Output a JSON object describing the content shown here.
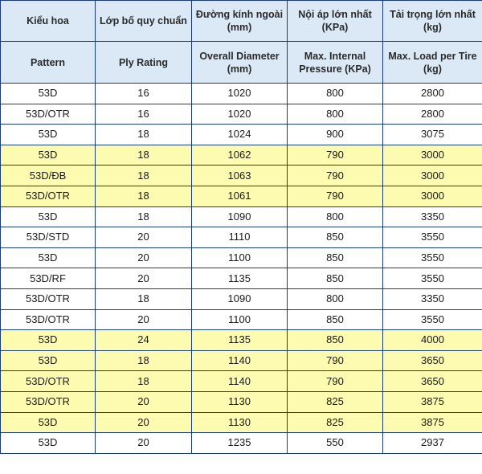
{
  "header_vn": [
    "Kiểu hoa",
    "Lớp bố quy chuẩn",
    "Đường kính ngoài (mm)",
    "Nội áp lớn nhất (KPa)",
    "Tải trọng lớn nhất (kg)"
  ],
  "header_en": [
    "Pattern",
    "Ply Rating",
    "Overall Diameter (mm)",
    "Max. Internal Pressure (KPa)",
    "Max. Load per Tire (kg)"
  ],
  "colors": {
    "header_bg": "#dbe9f7",
    "border": "#1a3b8c",
    "row_white": "#ffffff",
    "row_yellow": "#fdfbb0"
  },
  "rows": [
    {
      "cells": [
        "53D",
        "16",
        "1020",
        "800",
        "2800"
      ],
      "highlight": false
    },
    {
      "cells": [
        "53D/OTR",
        "16",
        "1020",
        "800",
        "2800"
      ],
      "highlight": false
    },
    {
      "cells": [
        "53D",
        "18",
        "1024",
        "900",
        "3075"
      ],
      "highlight": false
    },
    {
      "cells": [
        "53D",
        "18",
        "1062",
        "790",
        "3000"
      ],
      "highlight": true
    },
    {
      "cells": [
        "53D/ĐB",
        "18",
        "1063",
        "790",
        "3000"
      ],
      "highlight": true
    },
    {
      "cells": [
        "53D/OTR",
        "18",
        "1061",
        "790",
        "3000"
      ],
      "highlight": true
    },
    {
      "cells": [
        "53D",
        "18",
        "1090",
        "800",
        "3350"
      ],
      "highlight": false
    },
    {
      "cells": [
        "53D/STD",
        "20",
        "1110",
        "850",
        "3550"
      ],
      "highlight": false
    },
    {
      "cells": [
        "53D",
        "20",
        "1100",
        "850",
        "3550"
      ],
      "highlight": false
    },
    {
      "cells": [
        "53D/RF",
        "20",
        "1135",
        "850",
        "3550"
      ],
      "highlight": false
    },
    {
      "cells": [
        "53D/OTR",
        "18",
        "1090",
        "800",
        "3350"
      ],
      "highlight": false
    },
    {
      "cells": [
        "53D/OTR",
        "20",
        "1100",
        "850",
        "3550"
      ],
      "highlight": false
    },
    {
      "cells": [
        "53D",
        "24",
        "1135",
        "850",
        "4000"
      ],
      "highlight": true
    },
    {
      "cells": [
        "53D",
        "18",
        "1140",
        "790",
        "3650"
      ],
      "highlight": true
    },
    {
      "cells": [
        "53D/OTR",
        "18",
        "1140",
        "790",
        "3650"
      ],
      "highlight": true
    },
    {
      "cells": [
        "53D/OTR",
        "20",
        "1130",
        "825",
        "3875"
      ],
      "highlight": true
    },
    {
      "cells": [
        "53D",
        "20",
        "1130",
        "825",
        "3875"
      ],
      "highlight": true
    },
    {
      "cells": [
        "53D",
        "20",
        "1235",
        "550",
        "2937"
      ],
      "highlight": false
    }
  ]
}
